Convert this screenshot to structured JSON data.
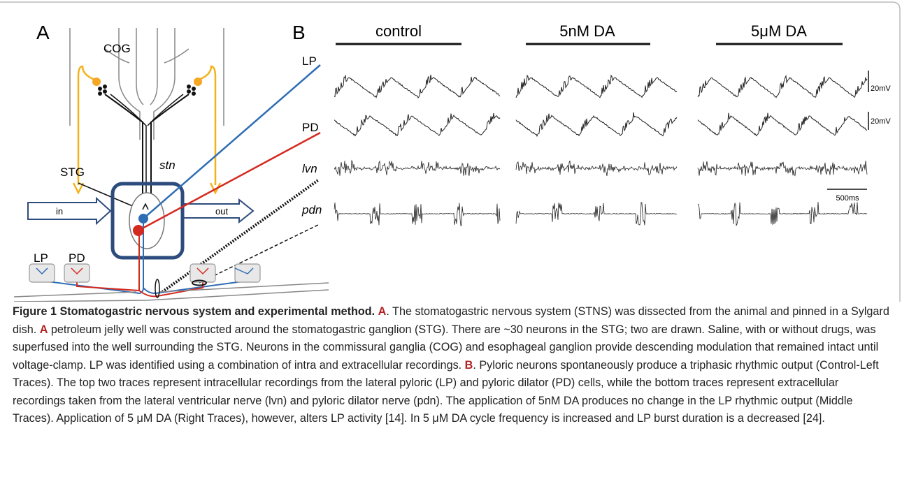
{
  "panel_a": {
    "label": "A",
    "cog": "COG",
    "lp": "LP",
    "pd": "PD",
    "stn": "stn",
    "lvn": "lvn",
    "pdn": "pdn",
    "stg": "STG",
    "in": "in",
    "out": "out",
    "bottom_lp": "LP",
    "bottom_pd": "PD"
  },
  "panel_b": {
    "label": "B",
    "conditions": [
      "control",
      "5nM DA",
      "5μM DA"
    ],
    "scale_labels": [
      "20mV",
      "20mV",
      "500ms"
    ]
  },
  "caption": {
    "title": "Figure 1 Stomatogastric nervous system and experimental method.",
    "segments": [
      "A",
      ". The stomatogastric nervous system (STNS) was dissected from the animal and pinned in a Sylgard dish. ",
      "A",
      " petroleum jelly well was constructed around the stomatogastric ganglion (STG). There are ~30 neurons in the STG; two are drawn. Saline, with or without drugs, was superfused into the well surrounding the STG. Neurons in the commissural ganglia (COG) and esophageal ganglion provide descending modulation that remained intact until voltage-clamp. LP was identified using a combination of intra and extracellular recordings. ",
      "B",
      ". Pyloric neurons spontaneously produce a triphasic rhythmic output (Control-Left Traces). The top two traces represent intracellular recordings from the lateral pyloric (LP) and pyloric dilator (PD) cells, while the bottom traces represent extracellular recordings taken from the lateral ventricular nerve (lvn) and pyloric dilator nerve (pdn). The application of 5nM DA produces no change in the LP rhythmic output (Middle Traces). Application of 5 μM DA (Right Traces), however, alters LP activity [14]. In 5 μM DA cycle frequency is increased and LP burst duration is a decreased [24]."
    ]
  }
}
